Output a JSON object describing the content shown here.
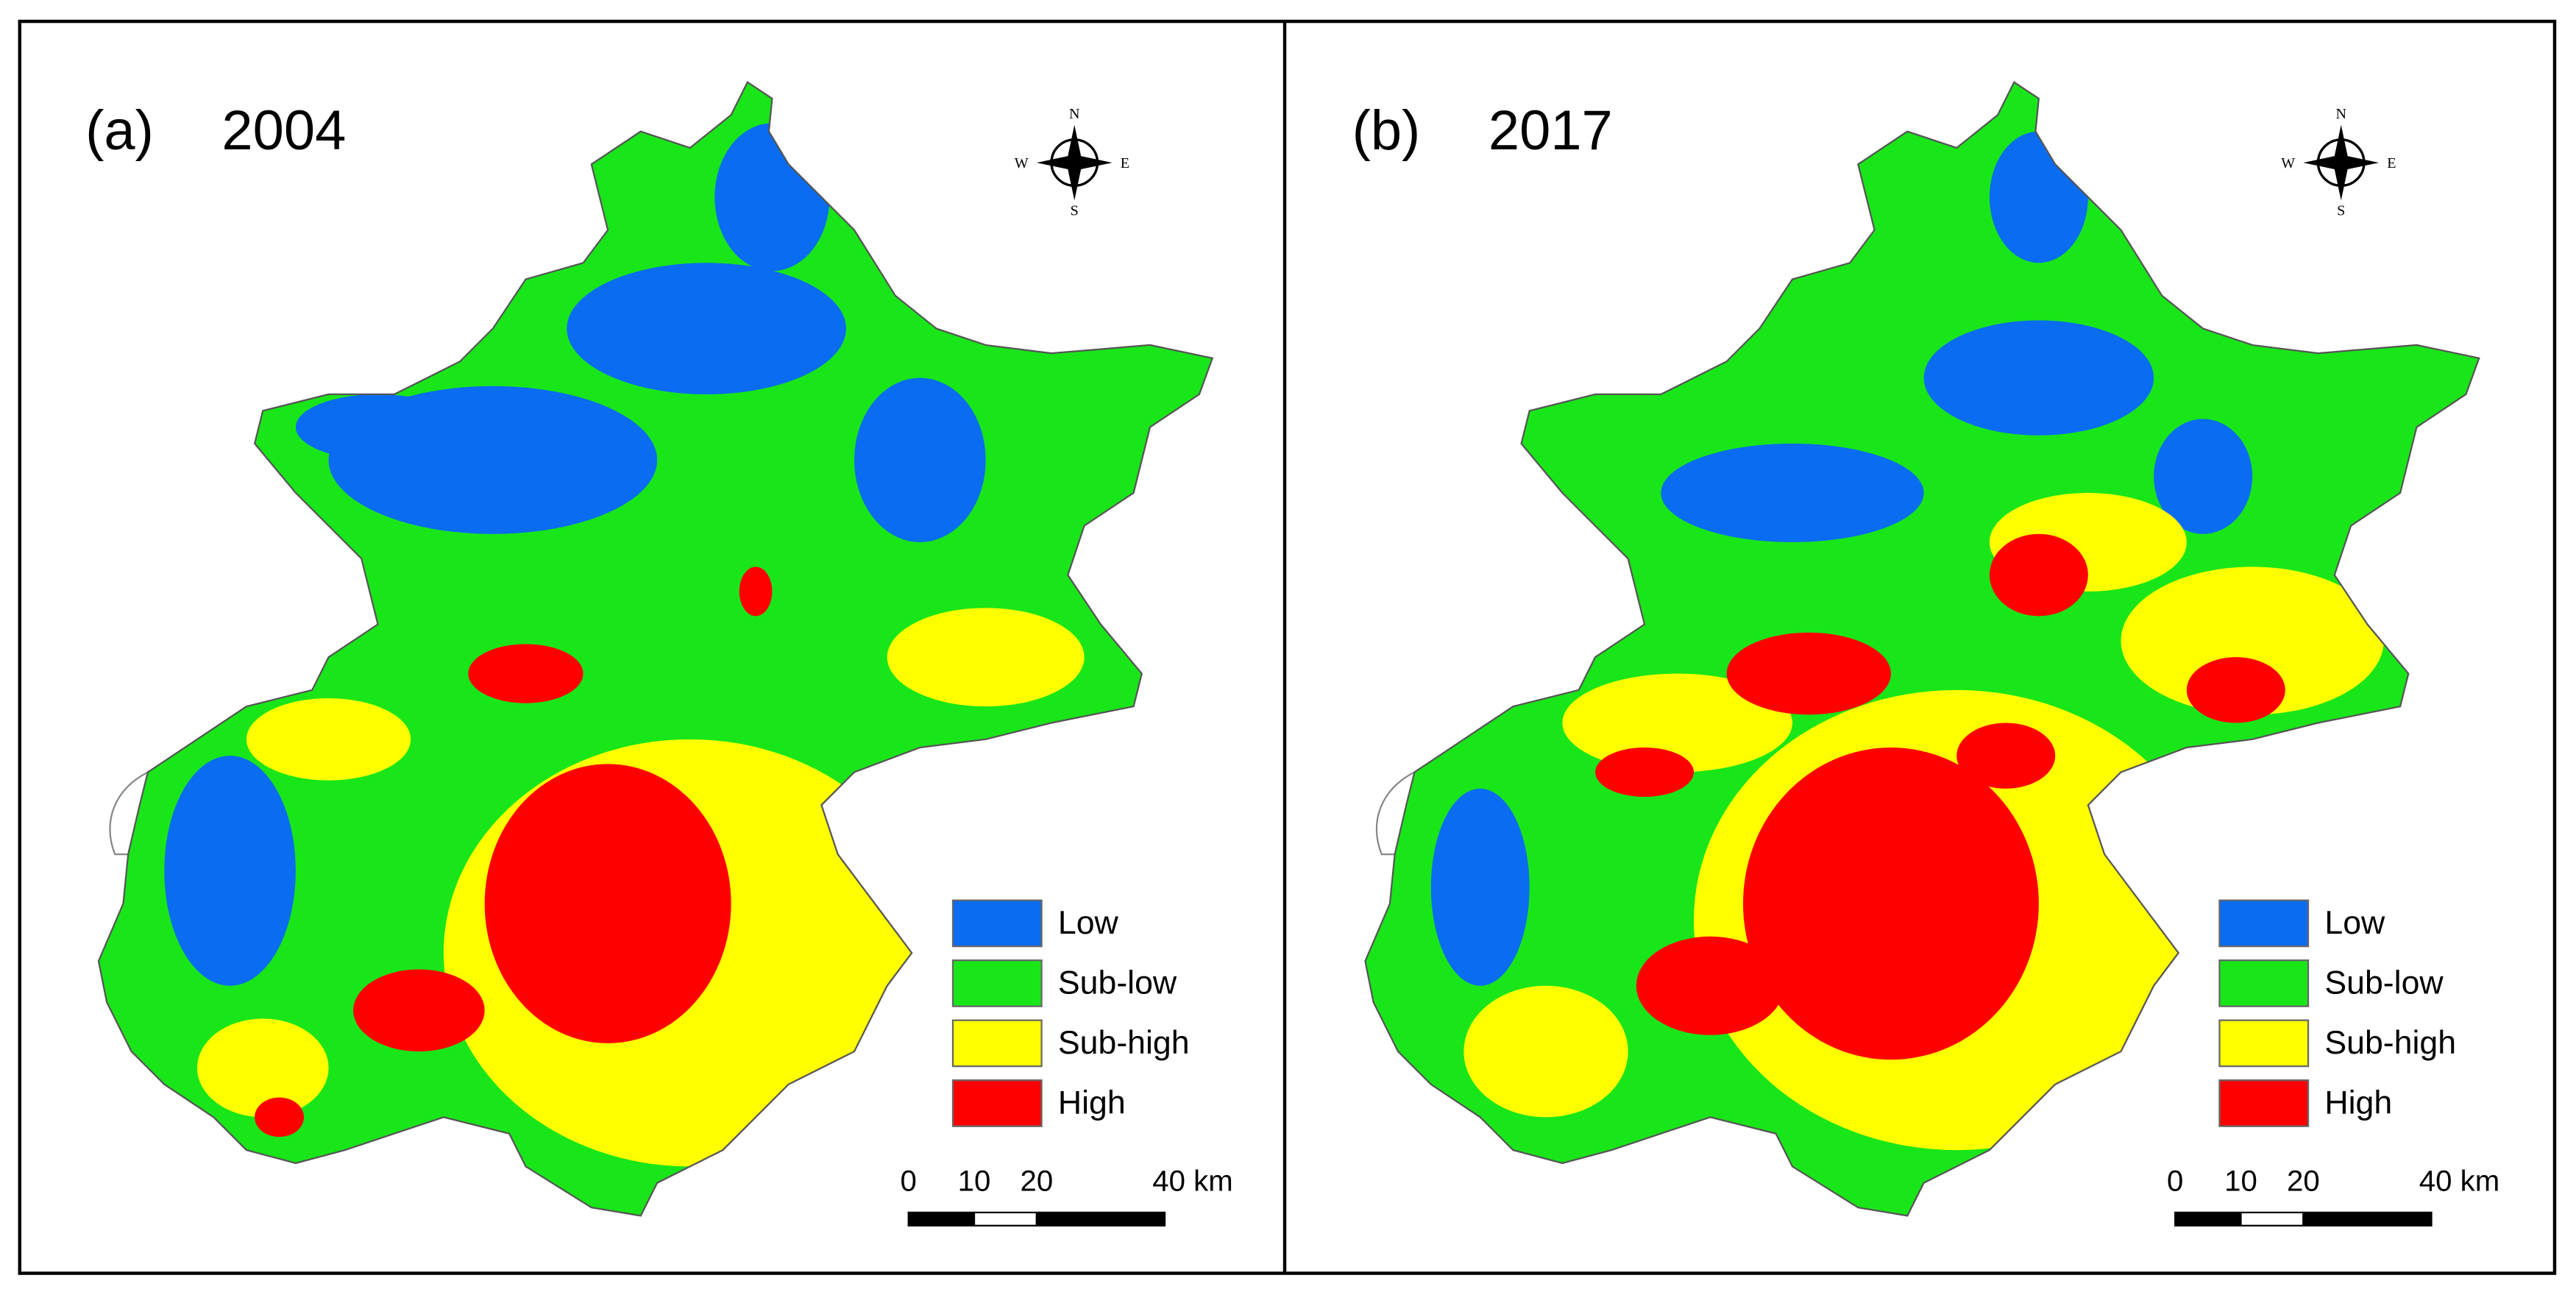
{
  "panels": [
    {
      "label": "(a)",
      "year": "2004"
    },
    {
      "label": "(b)",
      "year": "2017"
    }
  ],
  "compass": {
    "n": "N",
    "s": "S",
    "e": "E",
    "w": "W"
  },
  "legend": [
    {
      "label": "Low",
      "color": "#0a6cf0"
    },
    {
      "label": "Sub-low",
      "color": "#19e619"
    },
    {
      "label": "Sub-high",
      "color": "#ffff00"
    },
    {
      "label": "High",
      "color": "#ff0000"
    }
  ],
  "scale_bar": [
    "0",
    "10",
    "20",
    "40 km"
  ]
}
